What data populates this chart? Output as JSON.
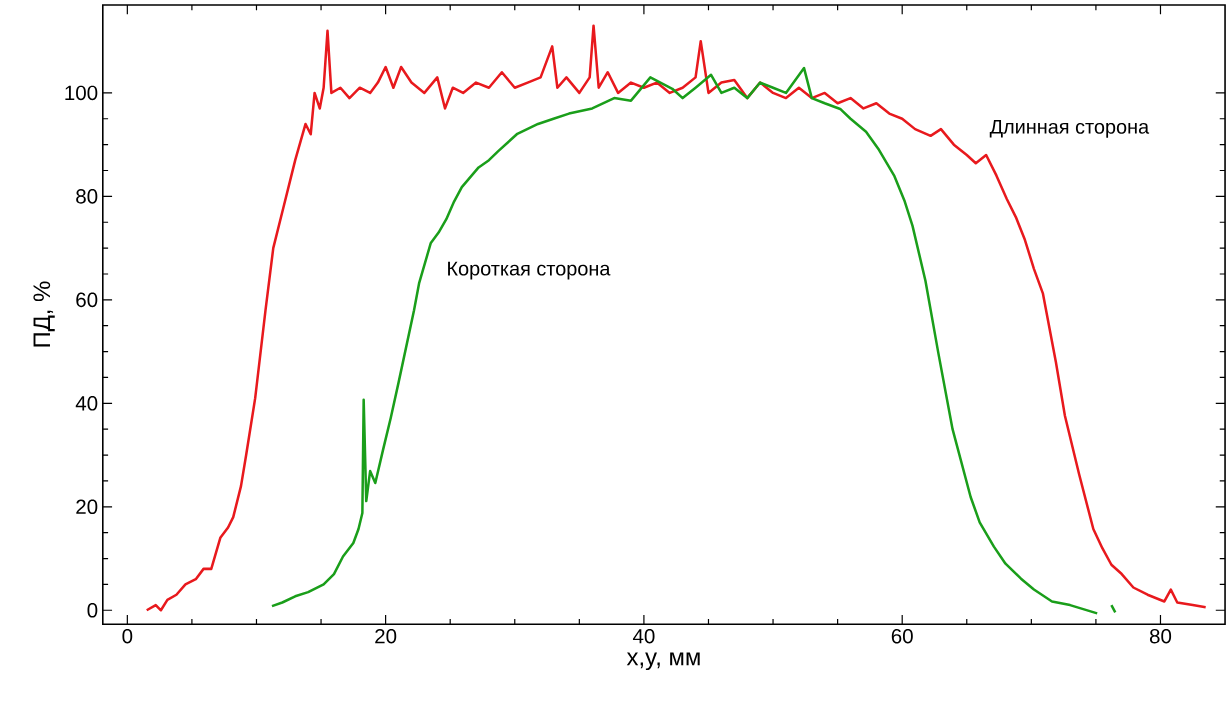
{
  "chart_data": {
    "type": "line",
    "xlabel": "x,y, мм",
    "ylabel": "ПД, %",
    "xlim": [
      -1.9,
      85
    ],
    "ylim": [
      -2.7,
      117
    ],
    "xticks": [
      0,
      20,
      40,
      60,
      80
    ],
    "yticks": [
      0,
      20,
      40,
      60,
      80,
      100
    ],
    "series": [
      {
        "name": "Длинная сторона",
        "color": "#e8191d",
        "x": [
          1.5,
          2.2,
          2.6,
          3.1,
          3.8,
          4.5,
          5.3,
          5.9,
          6.5,
          7.2,
          7.8,
          8.2,
          8.8,
          9.2,
          9.9,
          10.7,
          11.3,
          12.1,
          12.6,
          13,
          13.8,
          14.2,
          14.5,
          14.9,
          15.2,
          15.5,
          15.8,
          16.5,
          17.2,
          18,
          18.8,
          19.4,
          20,
          20.6,
          21.2,
          22,
          23,
          24,
          24.6,
          25.2,
          26,
          27,
          28,
          29,
          30,
          31,
          32,
          32.9,
          33.3,
          34,
          35,
          35.8,
          36.1,
          36.5,
          37.2,
          38,
          39,
          40,
          41,
          42,
          43,
          44,
          44.4,
          45,
          46,
          47,
          48,
          49,
          50,
          51,
          52,
          53,
          54,
          55,
          56,
          57,
          58,
          59,
          60,
          61,
          62.2,
          63,
          64,
          65,
          65.7,
          66.5,
          67.3,
          68.1,
          68.8,
          69.5,
          70.2,
          70.9,
          71.9,
          72.6,
          73.7,
          74.8,
          75.5,
          76.2,
          77,
          77.9,
          79,
          80.3,
          80.8,
          81.3,
          82.5,
          83.5
        ],
        "values": [
          0,
          1,
          0,
          2,
          3,
          5,
          6,
          8,
          8,
          14,
          16,
          18,
          24,
          30,
          41,
          58,
          70,
          78,
          83,
          87,
          94,
          92,
          100,
          97,
          101,
          112,
          100,
          101,
          99,
          101,
          100,
          102,
          105,
          101,
          105,
          102,
          100,
          103,
          97,
          101,
          100,
          102,
          101,
          104,
          101,
          102,
          103,
          109,
          101,
          103,
          100,
          103,
          113,
          101,
          104,
          100,
          102,
          101,
          102,
          100,
          101,
          103,
          110,
          100,
          102,
          102.5,
          99,
          102,
          100,
          99,
          101,
          99,
          100,
          98,
          99,
          97,
          98,
          96,
          95,
          93,
          91.7,
          93,
          90,
          88,
          86.4,
          88,
          84,
          79.5,
          76,
          71.6,
          66,
          61.2,
          48,
          37.6,
          26.3,
          15.7,
          12,
          8.8,
          7,
          4.4,
          3,
          1.7,
          4,
          1.5,
          1,
          0.6
        ]
      },
      {
        "name": "Короткая сторона",
        "color": "#1a9e1a",
        "x": [
          11.2,
          12,
          13,
          14,
          15.2,
          16,
          16.7,
          17.5,
          17.9,
          18.2,
          18.3,
          18.5,
          18.8,
          19.2,
          19.8,
          20.4,
          21,
          21.6,
          22.2,
          22.6,
          23.5,
          24.1,
          24.7,
          25.3,
          25.9,
          27.2,
          28,
          28.7,
          30.2,
          31.8,
          33,
          34.2,
          36,
          37.7,
          39,
          40.5,
          42.2,
          43,
          44,
          45.2,
          46,
          47,
          48,
          49,
          50,
          51,
          52.4,
          53,
          54,
          55.2,
          56,
          57.2,
          58.2,
          59.4,
          60.2,
          60.8,
          61.8,
          62.8,
          63.9,
          65.3,
          66,
          67.1,
          68,
          69.2,
          70.2,
          71.6,
          73,
          75.1,
          75.6,
          76.2,
          76.5
        ],
        "values": [
          0.8,
          1.5,
          2.7,
          3.5,
          5,
          7,
          10.4,
          13,
          15.7,
          18.8,
          40.7,
          21.1,
          26.9,
          24.6,
          31,
          37.2,
          44,
          51,
          58,
          63.3,
          71,
          73,
          75.6,
          79,
          81.8,
          85.6,
          87,
          88.7,
          92.1,
          94,
          95,
          96,
          97,
          99,
          98.5,
          103,
          100.8,
          99,
          101,
          103.5,
          100,
          101,
          99,
          102,
          101,
          100,
          104.8,
          99,
          98,
          96.9,
          95,
          92.5,
          89,
          83.9,
          79,
          74.3,
          63.7,
          49.7,
          35,
          21.9,
          17,
          12.3,
          9,
          6.1,
          4,
          1.7,
          1,
          -0.6,
          null,
          1,
          -0.4
        ]
      }
    ]
  }
}
